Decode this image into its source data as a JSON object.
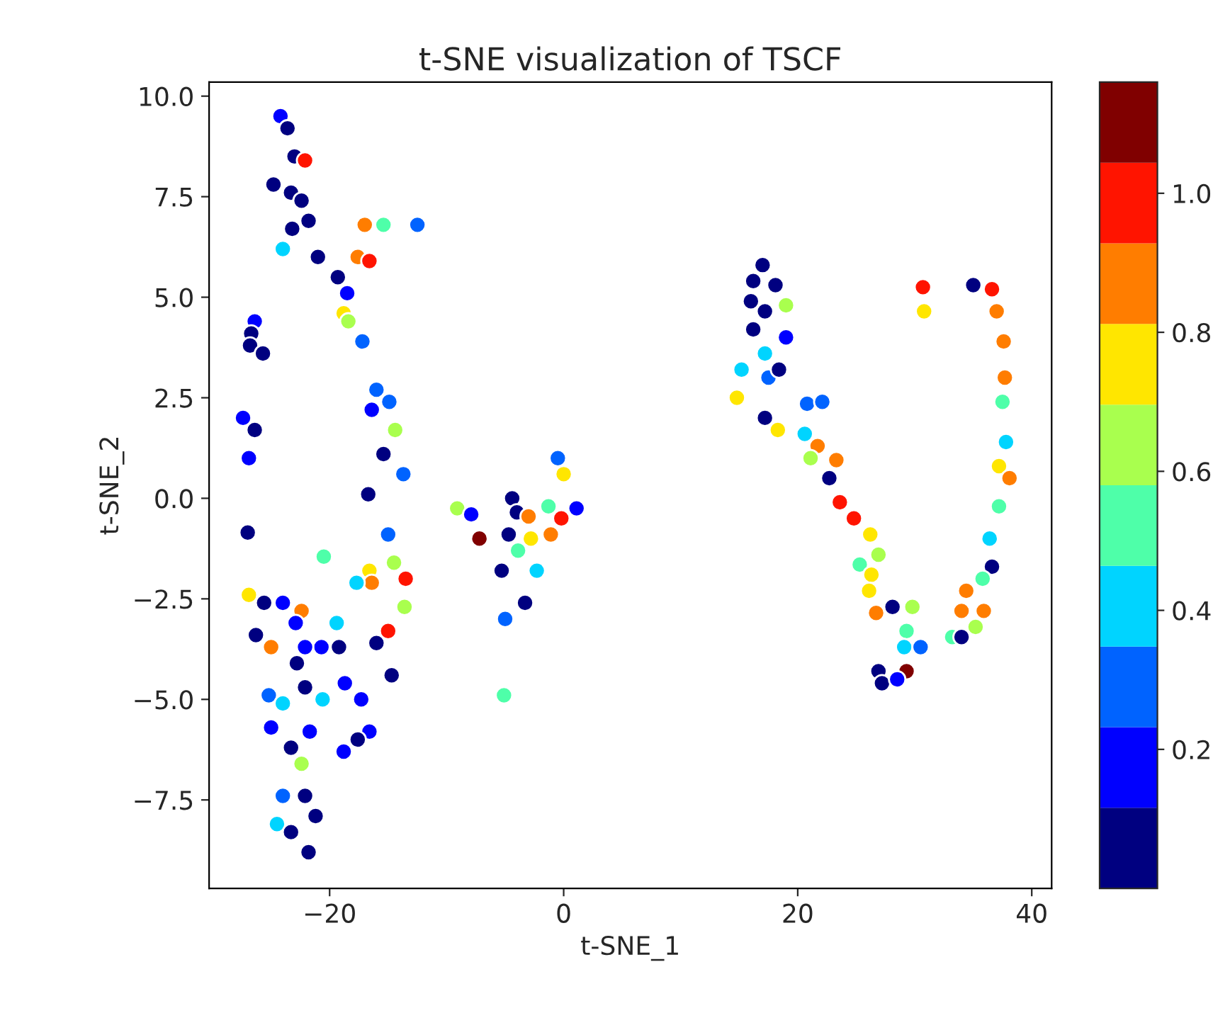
{
  "chart_data": {
    "type": "scatter",
    "title": "t-SNE visualization of TSCF",
    "xlabel": "t-SNE_1",
    "ylabel": "t-SNE_2",
    "xlim": [
      -30.3,
      41.7
    ],
    "ylim": [
      -9.7,
      10.35
    ],
    "xticks": [
      {
        "value": -20,
        "label": "−20"
      },
      0,
      20,
      40
    ],
    "yticks": [
      {
        "value": -7.5,
        "label": "−7.5"
      },
      {
        "value": -5.0,
        "label": "−5.0"
      },
      {
        "value": -2.5,
        "label": "−2.5"
      },
      {
        "value": 0,
        "label": "0.0"
      },
      2.5,
      {
        "value": 5,
        "label": "5.0"
      },
      7.5,
      {
        "value": 10,
        "label": "10.0"
      }
    ],
    "clim": [
      0.0,
      1.16
    ],
    "cticks": [
      0.2,
      0.4,
      0.6,
      0.8,
      {
        "value": 1,
        "label": "1.0"
      }
    ],
    "marker": "circle",
    "grid": false,
    "legend": false,
    "x": [
      -24.2,
      -23.6,
      -23.0,
      -22.1,
      -24.8,
      -23.3,
      -22.4,
      -21.8,
      -23.2,
      -17.0,
      -15.4,
      -12.5,
      -24.0,
      -21.0,
      -17.6,
      -16.6,
      -19.3,
      -18.5,
      -18.8,
      -18.4,
      -17.2,
      -26.4,
      -26.7,
      -26.8,
      -25.7,
      -27.4,
      -26.4,
      -26.9,
      -16.0,
      -16.4,
      -14.9,
      -14.4,
      -15.4,
      -13.7,
      -16.7,
      -27.0,
      -15.0,
      -20.5,
      -14.5,
      -16.6,
      -16.4,
      -17.7,
      -13.5,
      -13.6,
      -26.9,
      -25.6,
      -24.0,
      -22.4,
      -22.9,
      -19.4,
      -26.3,
      -25.0,
      -15.0,
      -20.7,
      -19.2,
      -22.1,
      -16.0,
      -14.7,
      -22.8,
      -22.1,
      -18.7,
      -25.2,
      -24.0,
      -20.6,
      -17.3,
      -25.0,
      -21.7,
      -23.3,
      -16.6,
      -17.6,
      -18.8,
      -22.4,
      -24.0,
      -22.1,
      -21.2,
      -24.5,
      -23.3,
      -21.8,
      -0.5,
      0.0,
      -4.4,
      -4.0,
      -9.1,
      -7.9,
      -1.3,
      1.1,
      -0.2,
      -3.0,
      -7.2,
      -4.7,
      -2.8,
      -1.1,
      -3.9,
      -5.3,
      -2.3,
      -3.3,
      -5.0,
      -5.1,
      17.0,
      18.1,
      16.2,
      17.2,
      16.0,
      19.0,
      16.2,
      19.0,
      17.2,
      15.2,
      17.5,
      18.4,
      14.8,
      17.2,
      18.3,
      20.8,
      22.1,
      20.6,
      21.7,
      21.1,
      23.3,
      22.7,
      23.6,
      24.8,
      26.2,
      26.9,
      25.3,
      26.3,
      26.1,
      26.7,
      28.1,
      29.8,
      29.3,
      29.1,
      30.5,
      26.9,
      29.3,
      27.2,
      28.5,
      30.7,
      30.8,
      35.0,
      36.6,
      37.0,
      37.6,
      37.7,
      37.5,
      37.8,
      37.2,
      38.1,
      37.2,
      36.4,
      36.6,
      35.8,
      34.4,
      34.0,
      35.9,
      35.2,
      33.2,
      34.0
    ],
    "values": [
      9.5,
      9.2,
      8.5,
      8.4,
      7.8,
      7.6,
      7.4,
      6.9,
      6.7,
      6.8,
      6.8,
      6.8,
      6.2,
      6.0,
      6.0,
      5.9,
      5.5,
      5.1,
      4.6,
      4.4,
      3.9,
      4.4,
      4.1,
      3.8,
      3.6,
      2.0,
      1.7,
      1.0,
      2.7,
      2.2,
      2.4,
      1.7,
      1.1,
      0.6,
      0.1,
      -0.85,
      -0.9,
      -1.45,
      -1.6,
      -1.8,
      -2.1,
      -2.1,
      -2.0,
      -2.7,
      -2.4,
      -2.6,
      -2.6,
      -2.8,
      -3.1,
      -3.1,
      -3.4,
      -3.7,
      -3.3,
      -3.7,
      -3.7,
      -3.7,
      -3.6,
      -4.4,
      -4.1,
      -4.7,
      -4.6,
      -4.9,
      -5.1,
      -5.0,
      -5.0,
      -5.7,
      -5.8,
      -6.2,
      -5.8,
      -6.0,
      -6.3,
      -6.6,
      -7.4,
      -7.4,
      -7.9,
      -8.1,
      -8.3,
      -8.8,
      1.0,
      0.6,
      0.0,
      -0.35,
      -0.25,
      -0.4,
      -0.2,
      -0.25,
      -0.5,
      -0.45,
      -1.0,
      -0.9,
      -1.0,
      -0.9,
      -1.3,
      -1.8,
      -1.8,
      -2.6,
      -3.0,
      -4.9,
      5.8,
      5.3,
      5.4,
      4.65,
      4.9,
      4.8,
      4.2,
      4.0,
      3.6,
      3.2,
      3.0,
      3.2,
      2.5,
      2.0,
      1.7,
      2.35,
      2.4,
      1.6,
      1.3,
      1.0,
      0.95,
      0.5,
      -0.1,
      -0.5,
      -0.9,
      -1.4,
      -1.65,
      -1.9,
      -2.3,
      -2.85,
      -2.7,
      -2.7,
      -3.3,
      -3.7,
      -3.7,
      -4.3,
      -4.3,
      -4.6,
      -4.5,
      5.25,
      4.65,
      5.3,
      5.2,
      4.65,
      3.9,
      3.0,
      2.4,
      1.4,
      0.8,
      0.5,
      -0.2,
      -1.0,
      -1.7,
      -2.0,
      -2.3,
      -2.8,
      -2.8,
      -3.2,
      -3.45,
      -3.45
    ],
    "cvalues": [
      0.17,
      0.06,
      0.06,
      0.98,
      0.06,
      0.06,
      0.06,
      0.06,
      0.06,
      0.87,
      0.52,
      0.29,
      0.41,
      0.06,
      0.87,
      0.98,
      0.06,
      0.17,
      0.75,
      0.64,
      0.29,
      0.17,
      0.06,
      0.06,
      0.06,
      0.17,
      0.06,
      0.17,
      0.29,
      0.17,
      0.29,
      0.64,
      0.06,
      0.29,
      0.06,
      0.06,
      0.29,
      0.52,
      0.64,
      0.75,
      0.87,
      0.41,
      0.98,
      0.64,
      0.75,
      0.06,
      0.17,
      0.87,
      0.17,
      0.41,
      0.06,
      0.87,
      0.98,
      0.17,
      0.06,
      0.17,
      0.06,
      0.06,
      0.06,
      0.06,
      0.17,
      0.29,
      0.41,
      0.41,
      0.17,
      0.17,
      0.17,
      0.06,
      0.17,
      0.06,
      0.17,
      0.64,
      0.29,
      0.06,
      0.06,
      0.41,
      0.06,
      0.06,
      0.29,
      0.75,
      0.06,
      0.06,
      0.64,
      0.17,
      0.52,
      0.17,
      0.98,
      0.87,
      1.1,
      0.06,
      0.75,
      0.87,
      0.52,
      0.06,
      0.41,
      0.06,
      0.29,
      0.52,
      0.06,
      0.06,
      0.06,
      0.06,
      0.06,
      0.64,
      0.06,
      0.17,
      0.41,
      0.41,
      0.29,
      0.06,
      0.75,
      0.06,
      0.75,
      0.29,
      0.29,
      0.41,
      0.87,
      0.64,
      0.87,
      0.06,
      0.98,
      0.98,
      0.75,
      0.64,
      0.52,
      0.75,
      0.75,
      0.87,
      0.06,
      0.64,
      0.52,
      0.41,
      0.29,
      0.06,
      1.1,
      0.06,
      0.17,
      0.98,
      0.75,
      0.06,
      0.98,
      0.87,
      0.87,
      0.87,
      0.52,
      0.41,
      0.75,
      0.87,
      0.52,
      0.41,
      0.06,
      0.52,
      0.87,
      0.87,
      0.87,
      0.64,
      0.52,
      0.06
    ]
  }
}
